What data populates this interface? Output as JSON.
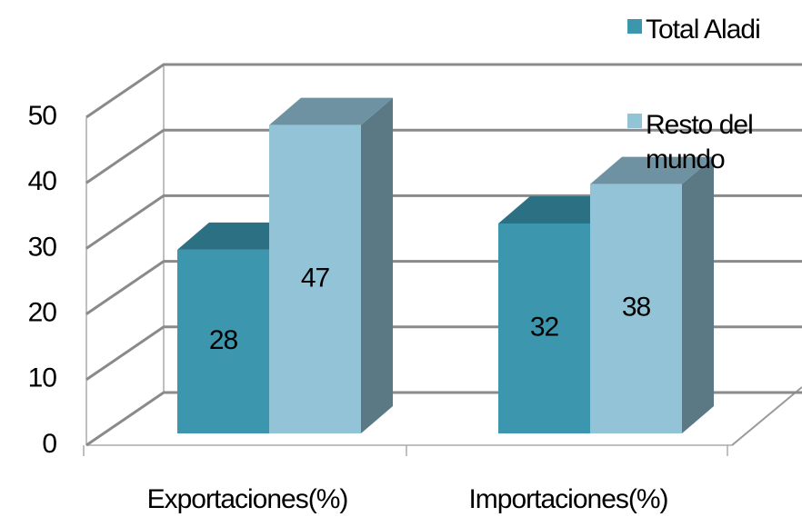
{
  "chart_data": {
    "type": "bar",
    "categories": [
      "Exportaciones(%)",
      "Importaciones(%)"
    ],
    "series": [
      {
        "name": "Total Aladi",
        "color": "#3b96ae",
        "values": [
          28,
          32
        ]
      },
      {
        "name": "Resto del mundo",
        "color": "#93c3d6",
        "values": [
          47,
          38
        ]
      }
    ],
    "ylim": [
      0,
      50
    ],
    "yticks": [
      0,
      10,
      20,
      30,
      40,
      50
    ],
    "grid": true,
    "legend": "right"
  }
}
